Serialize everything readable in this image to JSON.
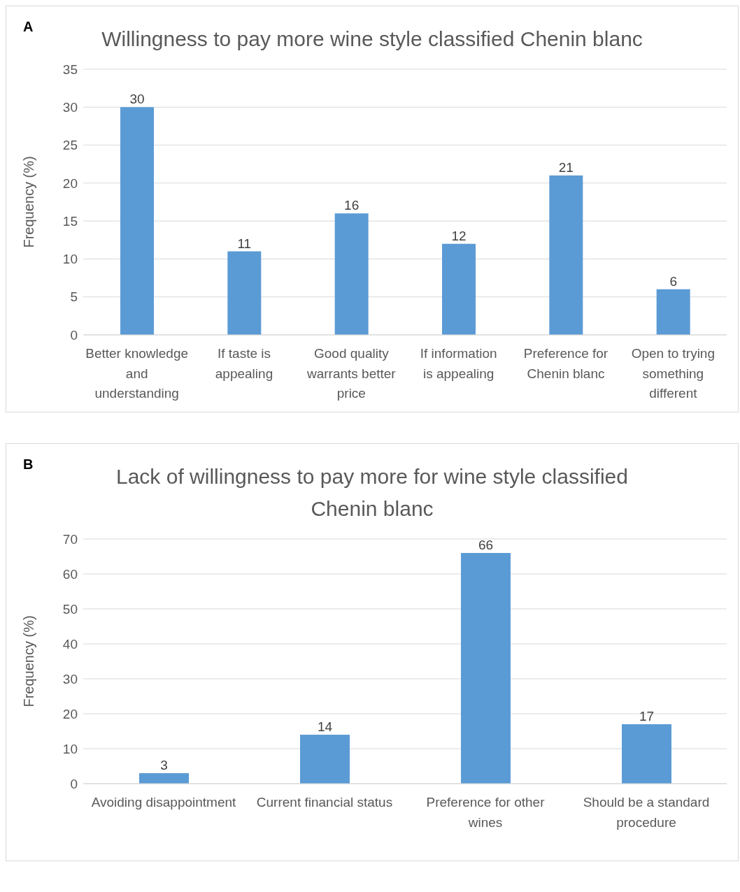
{
  "chart_data": [
    {
      "type": "bar",
      "title": "Willingness to pay more wine style classified Chenin blanc",
      "ylabel": "Frequency (%)",
      "annotations": [
        "A"
      ],
      "categories": [
        "Better knowledge and understanding",
        "If taste is appealing",
        "Good quality warrants better price",
        "If information is appealing",
        "Preference for Chenin blanc",
        "Open to trying something different"
      ],
      "values": [
        30,
        11,
        16,
        12,
        21,
        6
      ],
      "color": "#5b9bd5",
      "ylim": [
        0,
        35
      ],
      "yticks": [
        0,
        5,
        10,
        15,
        20,
        25,
        30,
        35
      ],
      "grid": "y",
      "data_labels": true
    },
    {
      "type": "bar",
      "title": "Lack of willingness to pay more  for wine style classified Chenin blanc",
      "ylabel": "Frequency (%)",
      "annotations": [
        "B"
      ],
      "categories": [
        "Avoiding disappointment",
        "Current financial status",
        "Preference for other wines",
        "Should be a standard procedure"
      ],
      "values": [
        3,
        14,
        66,
        17
      ],
      "color": "#5b9bd5",
      "ylim": [
        0,
        70
      ],
      "yticks": [
        0,
        10,
        20,
        30,
        40,
        50,
        60,
        70
      ],
      "grid": "y",
      "data_labels": true
    }
  ]
}
